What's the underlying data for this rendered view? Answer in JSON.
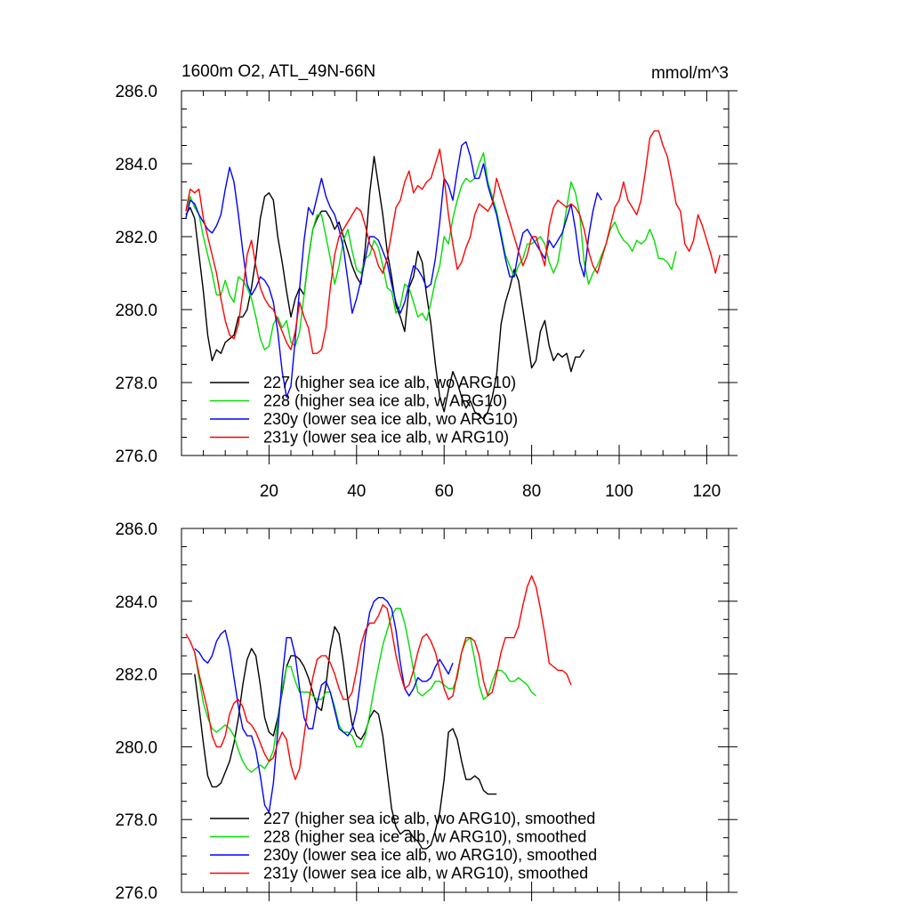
{
  "chart_data": [
    {
      "type": "line",
      "title": "1600m O2, ATL_49N-66N",
      "units": "mmol/m^3",
      "xlim": [
        0,
        125
      ],
      "ylim": [
        276,
        286
      ],
      "ytick_labels": [
        "286.0",
        "284.0",
        "282.0",
        "280.0",
        "278.0",
        "276.0"
      ],
      "xtick_labels": [
        "20",
        "40",
        "60",
        "80",
        "100",
        "120"
      ],
      "series": [
        {
          "name": "227 (higher sea ice alb, wo ARG10)",
          "color": "#000000",
          "x0": 1,
          "values": [
            282.6,
            282.8,
            282.5,
            281.5,
            280.5,
            279.3,
            278.6,
            278.9,
            278.8,
            279.1,
            279.2,
            279.3,
            279.8,
            279.8,
            280.0,
            280.6,
            281.4,
            282.5,
            283.1,
            283.2,
            283.0,
            282.0,
            281.3,
            280.5,
            279.8,
            280.3,
            280.6,
            280.4,
            281.4,
            282.2,
            282.5,
            282.7,
            282.7,
            282.5,
            282.2,
            282.4,
            282.0,
            281.6,
            281.2,
            280.9,
            280.7,
            281.7,
            283.2,
            284.2,
            283.4,
            282.6,
            281.6,
            280.9,
            280.1,
            279.8,
            279.4,
            280.6,
            280.9,
            281.6,
            281.3,
            280.4,
            279.6,
            278.5,
            277.6,
            277.2,
            277.8,
            278.3,
            278.0,
            277.6,
            277.3,
            277.5,
            277.2,
            277.1,
            277.0,
            277.2,
            277.6,
            278.2,
            279.6,
            280.2,
            280.6,
            281.1,
            280.8,
            280.0,
            279.2,
            278.4,
            278.6,
            279.4,
            279.7,
            279.0,
            278.6,
            278.8,
            278.7,
            278.8,
            278.3,
            278.7,
            278.7,
            278.9
          ]
        },
        {
          "name": "228 (higher sea ice alb, w ARG10)",
          "color": "#00dd00",
          "x0": 1,
          "values": [
            282.7,
            283.1,
            282.8,
            282.6,
            282.0,
            281.5,
            281.0,
            280.4,
            280.4,
            280.8,
            280.4,
            280.2,
            280.9,
            280.8,
            280.6,
            280.3,
            279.8,
            279.2,
            278.9,
            279.0,
            279.6,
            279.8,
            279.5,
            279.7,
            279.1,
            279.0,
            279.4,
            280.4,
            281.4,
            282.2,
            282.6,
            282.6,
            282.0,
            281.4,
            280.7,
            281.2,
            281.9,
            282.2,
            281.6,
            281.1,
            281.0,
            281.4,
            281.5,
            281.9,
            281.7,
            281.2,
            280.6,
            280.5,
            279.9,
            280.1,
            280.7,
            280.6,
            280.2,
            279.8,
            279.9,
            279.7,
            280.2,
            280.8,
            281.2,
            282.0,
            281.8,
            282.5,
            283.0,
            283.4,
            283.6,
            283.5,
            283.6,
            284.0,
            284.3,
            283.5,
            283.1,
            282.7,
            282.1,
            281.5,
            281.2,
            280.9,
            281.2,
            281.4,
            281.8,
            281.8,
            281.9,
            282.0,
            281.8,
            281.3,
            281.0,
            281.3,
            282.0,
            282.8,
            283.5,
            283.2,
            282.6,
            281.3,
            280.7,
            281.0,
            281.2,
            281.5,
            281.8,
            282.2,
            282.4,
            282.1,
            281.9,
            281.8,
            281.6,
            281.9,
            281.8,
            281.9,
            282.2,
            281.9,
            281.4,
            281.4,
            281.3,
            281.1,
            281.6
          ]
        },
        {
          "name": "230y (lower sea ice alb, wo ARG10)",
          "color": "#0000ff",
          "x0": 1,
          "values": [
            282.5,
            283.0,
            282.9,
            282.6,
            282.4,
            282.2,
            282.1,
            282.3,
            282.6,
            283.3,
            283.9,
            283.5,
            282.6,
            281.6,
            280.7,
            280.4,
            280.6,
            280.9,
            280.8,
            280.6,
            280.2,
            279.4,
            278.3,
            277.6,
            277.9,
            279.2,
            280.6,
            281.9,
            282.8,
            282.6,
            283.1,
            283.6,
            283.1,
            282.8,
            282.6,
            282.2,
            281.7,
            280.8,
            279.9,
            280.3,
            280.8,
            281.4,
            282.0,
            282.0,
            281.9,
            281.6,
            281.3,
            280.7,
            280.2,
            279.9,
            280.2,
            280.7,
            281.2,
            281.1,
            280.9,
            280.6,
            280.7,
            281.4,
            282.4,
            283.6,
            283.4,
            283.0,
            283.8,
            284.5,
            284.6,
            284.2,
            283.6,
            283.6,
            284.0,
            283.4,
            283.0,
            282.6,
            282.0,
            281.4,
            280.9,
            280.9,
            281.6,
            282.1,
            282.2,
            282.0,
            281.8,
            281.6,
            281.4,
            281.9,
            281.7,
            281.9,
            282.1,
            282.5,
            282.9,
            282.2,
            281.3,
            280.9,
            282.0,
            282.7,
            283.2,
            283.0
          ]
        },
        {
          "name": "231y (lower sea ice alb, w ARG10)",
          "color": "#ff0000",
          "x0": 1,
          "values": [
            282.7,
            283.3,
            283.2,
            283.3,
            282.5,
            282.0,
            281.5,
            281.0,
            280.3,
            279.7,
            279.3,
            279.2,
            279.6,
            280.5,
            281.5,
            281.9,
            281.2,
            280.6,
            280.3,
            280.1,
            280.0,
            279.7,
            279.4,
            279.1,
            278.9,
            279.4,
            280.2,
            279.8,
            279.5,
            278.8,
            278.8,
            278.9,
            279.5,
            280.6,
            281.5,
            282.0,
            282.2,
            282.4,
            282.6,
            282.8,
            282.7,
            282.3,
            281.8,
            281.6,
            281.2,
            281.0,
            281.4,
            282.1,
            282.8,
            283.0,
            283.5,
            283.8,
            283.2,
            283.4,
            283.3,
            283.5,
            283.6,
            284.0,
            284.4,
            283.6,
            282.6,
            281.8,
            281.1,
            281.3,
            281.7,
            282.0,
            282.6,
            282.9,
            282.8,
            282.7,
            282.9,
            283.6,
            283.2,
            282.8,
            282.4,
            282.0,
            281.6,
            281.2,
            281.5,
            282.0,
            282.0,
            281.6,
            281.2,
            282.3,
            282.8,
            283.0,
            282.9,
            282.8,
            282.9,
            282.8,
            282.6,
            282.2,
            281.6,
            281.2,
            281.0,
            281.4,
            281.8,
            282.3,
            282.8,
            283.0,
            283.5,
            283.0,
            282.8,
            282.6,
            283.0,
            283.8,
            284.7,
            284.9,
            284.9,
            284.5,
            284.2,
            283.6,
            282.9,
            282.7,
            281.8,
            281.6,
            281.9,
            282.6,
            282.3,
            281.9,
            281.5,
            281.0,
            281.5
          ]
        }
      ]
    },
    {
      "type": "line",
      "xlim": [
        0,
        125
      ],
      "ylim": [
        276,
        286
      ],
      "ytick_labels": [
        "286.0",
        "284.0",
        "282.0",
        "280.0",
        "278.0",
        "276.0"
      ],
      "series": [
        {
          "name": "227 (higher sea ice alb, wo ARG10), smoothed",
          "color": "#000000",
          "x0": 3,
          "values": [
            282.0,
            281.1,
            280.1,
            279.2,
            278.9,
            278.9,
            279.0,
            279.3,
            279.6,
            280.1,
            280.8,
            281.7,
            282.4,
            282.7,
            282.5,
            281.7,
            280.8,
            280.4,
            280.3,
            280.8,
            281.5,
            282.2,
            282.5,
            282.5,
            282.4,
            282.2,
            281.9,
            281.5,
            281.1,
            281.0,
            281.7,
            282.7,
            283.3,
            283.1,
            282.3,
            281.3,
            280.6,
            280.3,
            280.2,
            280.4,
            280.8,
            281.0,
            280.9,
            280.3,
            279.3,
            278.3,
            277.8,
            277.6,
            277.7,
            277.7,
            277.5,
            277.4,
            277.2,
            277.2,
            277.3,
            277.7,
            278.2,
            279.1,
            280.4,
            280.5,
            280.2,
            279.6,
            279.1,
            279.1,
            279.2,
            279.1,
            278.8,
            278.7,
            278.7,
            278.7
          ]
        },
        {
          "name": "228 (higher sea ice alb, w ARG10), smoothed",
          "color": "#00dd00",
          "x0": 3,
          "values": [
            282.6,
            281.9,
            281.2,
            280.8,
            280.5,
            280.4,
            280.5,
            280.6,
            280.5,
            280.3,
            279.9,
            279.6,
            279.4,
            279.3,
            279.4,
            279.5,
            279.4,
            279.6,
            279.9,
            280.7,
            281.6,
            282.2,
            282.2,
            281.8,
            281.5,
            281.5,
            281.5,
            281.4,
            281.3,
            281.3,
            281.5,
            281.5,
            281.1,
            280.6,
            280.4,
            280.4,
            280.3,
            280.0,
            280.0,
            280.3,
            280.9,
            281.6,
            282.2,
            282.8,
            283.2,
            283.6,
            283.8,
            283.8,
            283.4,
            282.8,
            282.1,
            281.5,
            281.4,
            281.5,
            281.6,
            281.8,
            281.8,
            281.7,
            281.6,
            281.6,
            281.9,
            282.6,
            282.9,
            283.0,
            282.4,
            281.7,
            281.3,
            281.4,
            281.8,
            282.1,
            282.1,
            282.0,
            281.8,
            281.8,
            281.9,
            281.8,
            281.7,
            281.5,
            281.4
          ]
        },
        {
          "name": "230y (lower sea ice alb, wo ARG10), smoothed",
          "color": "#0000ff",
          "x0": 3,
          "values": [
            282.7,
            282.6,
            282.4,
            282.3,
            282.5,
            282.9,
            283.1,
            283.2,
            282.7,
            281.9,
            281.1,
            280.5,
            280.3,
            280.3,
            279.9,
            279.2,
            278.4,
            278.2,
            279.0,
            280.4,
            281.9,
            283.0,
            283.0,
            282.5,
            281.6,
            280.8,
            280.5,
            280.5,
            281.2,
            281.7,
            281.8,
            281.5,
            281.0,
            280.5,
            280.4,
            280.3,
            280.5,
            281.0,
            281.9,
            283.0,
            283.7,
            284.0,
            284.1,
            284.1,
            284.0,
            283.8,
            283.2,
            282.3,
            281.6,
            281.4,
            281.6,
            281.9,
            281.8,
            281.8,
            281.9,
            282.2,
            282.4,
            282.2,
            282.0,
            282.3
          ]
        },
        {
          "name": "231y (lower sea ice alb, w ARG10), smoothed",
          "color": "#ff0000",
          "x0": 1,
          "values": [
            283.1,
            282.9,
            282.6,
            282.0,
            281.5,
            281.0,
            280.3,
            280.0,
            280.0,
            280.3,
            280.9,
            281.2,
            281.3,
            281.1,
            280.7,
            280.6,
            280.4,
            280.1,
            279.8,
            279.6,
            279.7,
            280.1,
            280.4,
            280.2,
            279.5,
            279.1,
            279.4,
            280.3,
            281.2,
            281.9,
            282.4,
            282.5,
            282.5,
            282.3,
            282.0,
            281.6,
            281.3,
            281.3,
            281.5,
            282.1,
            282.8,
            283.2,
            283.4,
            283.4,
            283.6,
            283.9,
            283.8,
            283.2,
            282.5,
            282.0,
            281.6,
            281.7,
            282.1,
            282.6,
            283.0,
            283.1,
            282.9,
            282.6,
            282.1,
            281.6,
            281.3,
            281.4,
            282.0,
            282.6,
            283.0,
            283.0,
            282.9,
            282.5,
            281.8,
            281.4,
            281.5,
            282.0,
            282.6,
            283.0,
            283.0,
            283.0,
            283.3,
            283.9,
            284.4,
            284.7,
            284.4,
            283.8,
            283.1,
            282.3,
            282.2,
            282.1,
            282.1,
            282.0,
            281.7
          ]
        }
      ]
    }
  ]
}
